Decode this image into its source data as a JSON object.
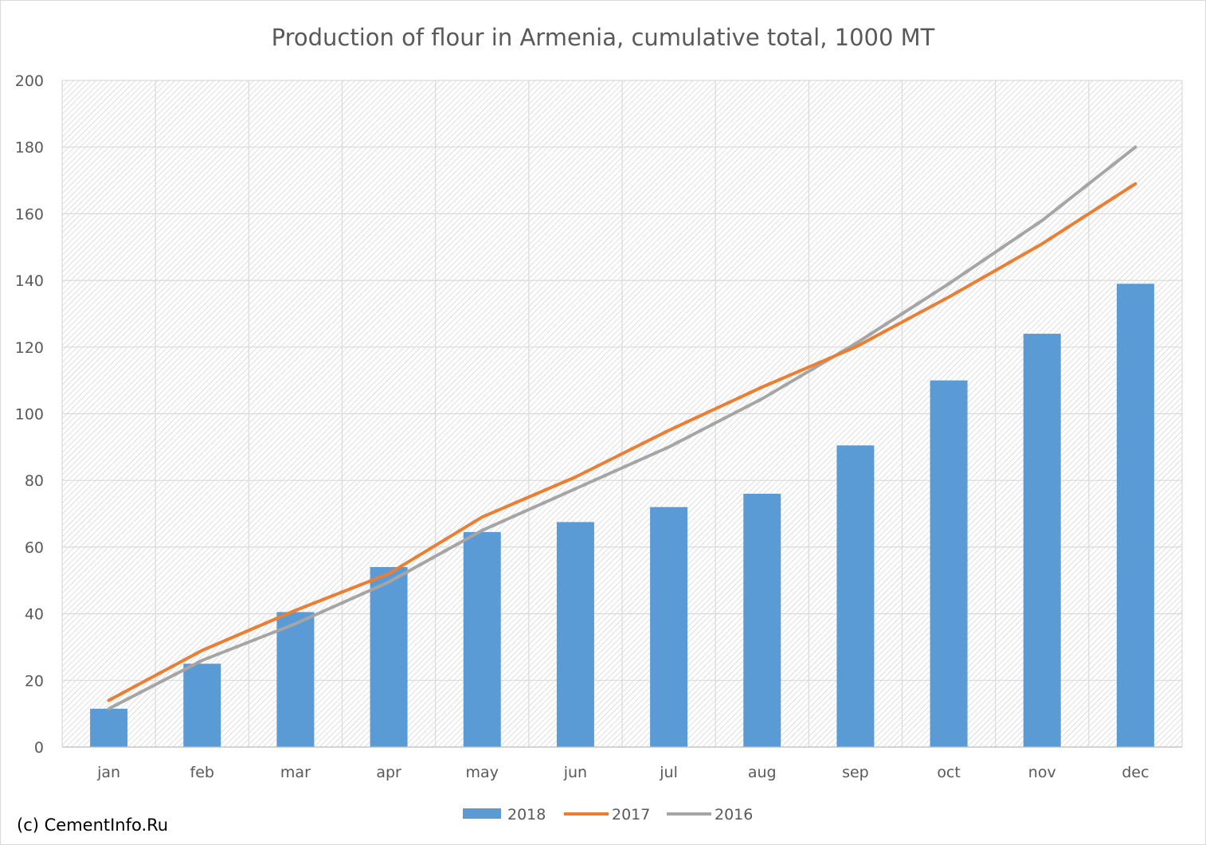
{
  "credit": "(c) CementInfo.Ru",
  "colors": {
    "s2018": "#5B9BD5",
    "s2017": "#ED7D31",
    "s2016": "#A5A5A5",
    "grid": "#d9d9d9",
    "text": "#595959"
  },
  "chart_data": {
    "type": "bar",
    "title": "Production of flour in Armenia, cumulative total, 1000 MT",
    "xlabel": "",
    "ylabel": "",
    "categories": [
      "jan",
      "feb",
      "mar",
      "apr",
      "may",
      "jun",
      "jul",
      "aug",
      "sep",
      "oct",
      "nov",
      "dec"
    ],
    "yticks": [
      0,
      20,
      40,
      60,
      80,
      100,
      120,
      140,
      160,
      180,
      200
    ],
    "ylim": [
      0,
      200
    ],
    "grid": true,
    "legend_position": "bottom",
    "series": [
      {
        "name": "2018",
        "type": "bar",
        "color": "#5B9BD5",
        "values": [
          11.5,
          25,
          40.5,
          54,
          64.5,
          67.5,
          72,
          76,
          90.5,
          110,
          124,
          139
        ]
      },
      {
        "name": "2017",
        "type": "line",
        "color": "#ED7D31",
        "values": [
          14,
          29,
          41,
          52,
          69,
          81,
          95,
          108,
          120,
          135,
          151,
          169
        ]
      },
      {
        "name": "2016",
        "type": "line",
        "color": "#A5A5A5",
        "values": [
          11.5,
          26,
          37,
          49.5,
          65,
          77.5,
          90,
          104.5,
          121,
          139,
          158,
          180
        ]
      }
    ]
  }
}
